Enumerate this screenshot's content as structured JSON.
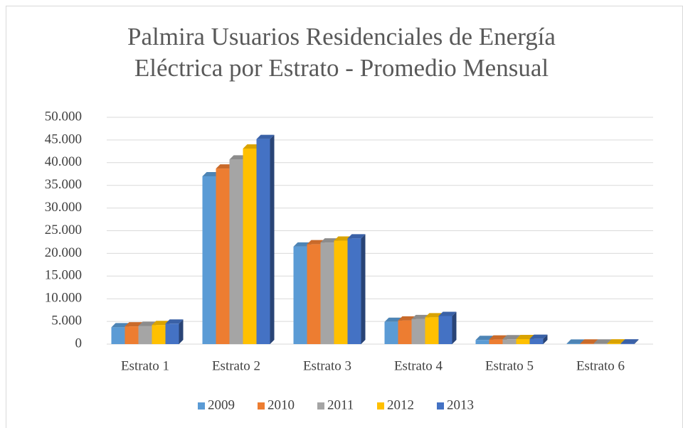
{
  "chart_data": {
    "type": "bar",
    "title": "Palmira Usuarios Residenciales de Energía Eléctrica por Estrato - Promedio Mensual",
    "categories": [
      "Estrato 1",
      "Estrato 2",
      "Estrato 3",
      "Estrato 4",
      "Estrato 5",
      "Estrato 6"
    ],
    "series": [
      {
        "name": "2009",
        "color": "#5b9bd5",
        "values": [
          3700,
          37000,
          21500,
          4900,
          900,
          100
        ]
      },
      {
        "name": "2010",
        "color": "#ed7d31",
        "values": [
          3900,
          38700,
          22000,
          5200,
          1000,
          110
        ]
      },
      {
        "name": "2011",
        "color": "#a5a5a5",
        "values": [
          4000,
          40700,
          22400,
          5500,
          1050,
          120
        ]
      },
      {
        "name": "2012",
        "color": "#ffc000",
        "values": [
          4200,
          43100,
          22800,
          5900,
          1100,
          130
        ]
      },
      {
        "name": "2013",
        "color": "#4472c4",
        "values": [
          4500,
          45200,
          23300,
          6200,
          1150,
          140
        ]
      }
    ],
    "ylim": [
      0,
      50000
    ],
    "yticks": [
      0,
      {
        "value": 5000,
        "label": "5.000"
      },
      {
        "value": 10000,
        "label": "10.000"
      },
      {
        "value": 15000,
        "label": "15.000"
      },
      {
        "value": 20000,
        "label": "20.000"
      },
      {
        "value": 25000,
        "label": "25.000"
      },
      {
        "value": 30000,
        "label": "30.000"
      },
      {
        "value": 35000,
        "label": "35.000"
      },
      {
        "value": 40000,
        "label": "40.000"
      },
      {
        "value": 45000,
        "label": "45.000"
      },
      {
        "value": 50000,
        "label": "50.000"
      }
    ],
    "grid": true,
    "legend": "bottom"
  }
}
